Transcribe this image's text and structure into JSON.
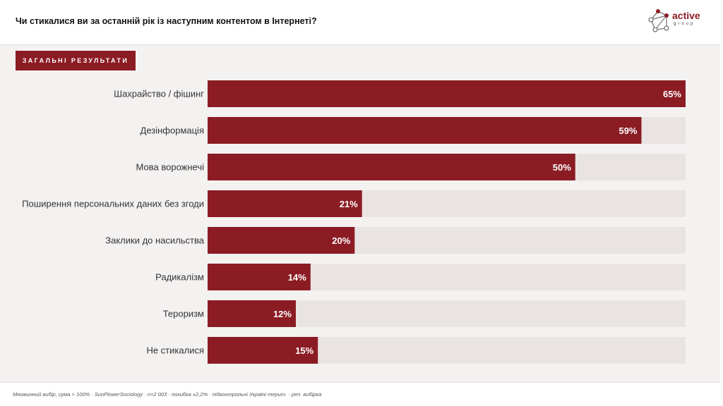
{
  "header": {
    "title": "Чи стикалися ви за останній рік із наступним контентом в Інтернеті?",
    "logo_name": "active",
    "logo_sub": "group"
  },
  "section_tag": "ЗАГАЛЬНІ РЕЗУЛЬТАТИ",
  "footer": {
    "note": "Множинний вибір, сума > 100% · SunFlowerSociology · n=2 003 · похибка ±2,2% · підконтрольні Україні терит. · реп. вибірка"
  },
  "colors": {
    "bar": "#8b1c24",
    "track": "#e9e4e2",
    "label": "#333333",
    "value": "#ffffff"
  },
  "chart_data": {
    "type": "bar",
    "orientation": "horizontal",
    "categories": [
      "Шахрайство / фішинг",
      "Дезінформація",
      "Мова ворожнечі",
      "Поширення персональних даних без згоди",
      "Заклики до насильства",
      "Радикалізм",
      "Тероризм",
      "Не стикалися"
    ],
    "values": [
      65,
      59,
      50,
      21,
      20,
      14,
      12,
      15
    ],
    "value_labels": [
      "65%",
      "59%",
      "50%",
      "21%",
      "20%",
      "14%",
      "12%",
      "15%"
    ],
    "xlim": [
      0,
      65
    ],
    "grid": false,
    "legend": "none"
  }
}
